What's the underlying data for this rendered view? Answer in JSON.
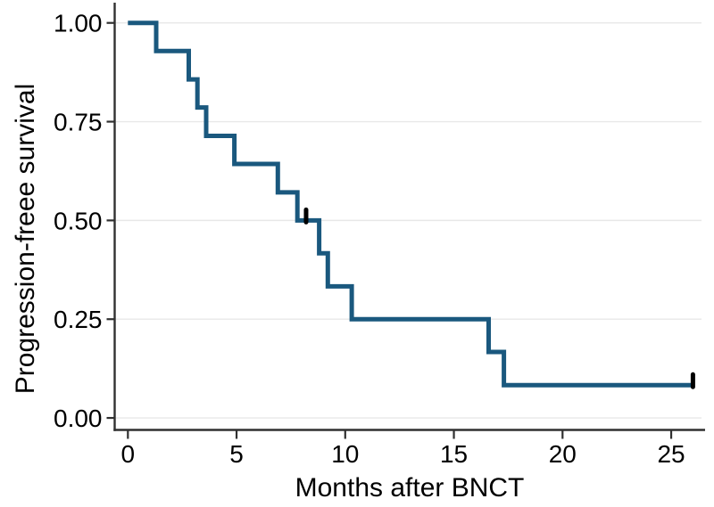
{
  "figure": {
    "background": "#ffffff",
    "kind": "kaplan-meier-survival-plot"
  },
  "chart_data": {
    "type": "line",
    "variant": "step-survival-curve",
    "title": "",
    "xlabel": "Months after BNCT",
    "ylabel": "Progression-freee survival",
    "xlim": [
      0,
      26.6
    ],
    "ylim": [
      0,
      1
    ],
    "xticks": [
      0,
      5,
      10,
      15,
      20,
      25
    ],
    "xtick_labels": [
      "0",
      "5",
      "10",
      "15",
      "20",
      "25"
    ],
    "yticks": [
      0,
      0.25,
      0.5,
      0.75,
      1
    ],
    "ytick_labels": [
      "0.00",
      "0.25",
      "0.50",
      "0.75",
      "1.00"
    ],
    "grid": "horizontal-light",
    "legend": "none",
    "colors": {
      "line": "#1a587e",
      "axis": "#303030",
      "grid": "#e8e8e8",
      "censor": "#000000",
      "text": "#000000"
    },
    "series": [
      {
        "name": "Progression-free survival",
        "step_points": [
          [
            0,
            1.0
          ],
          [
            1.3,
            0.929
          ],
          [
            2.8,
            0.857
          ],
          [
            3.2,
            0.786
          ],
          [
            3.6,
            0.714
          ],
          [
            4.9,
            0.643
          ],
          [
            6.9,
            0.571
          ],
          [
            7.8,
            0.5
          ],
          [
            8.8,
            0.417
          ],
          [
            9.2,
            0.333
          ],
          [
            10.3,
            0.25
          ],
          [
            16.6,
            0.167
          ],
          [
            17.3,
            0.083
          ]
        ],
        "end_time": 26.0,
        "censor_marks": [
          [
            8.2,
            0.5
          ],
          [
            26.0,
            0.083
          ]
        ]
      }
    ]
  }
}
